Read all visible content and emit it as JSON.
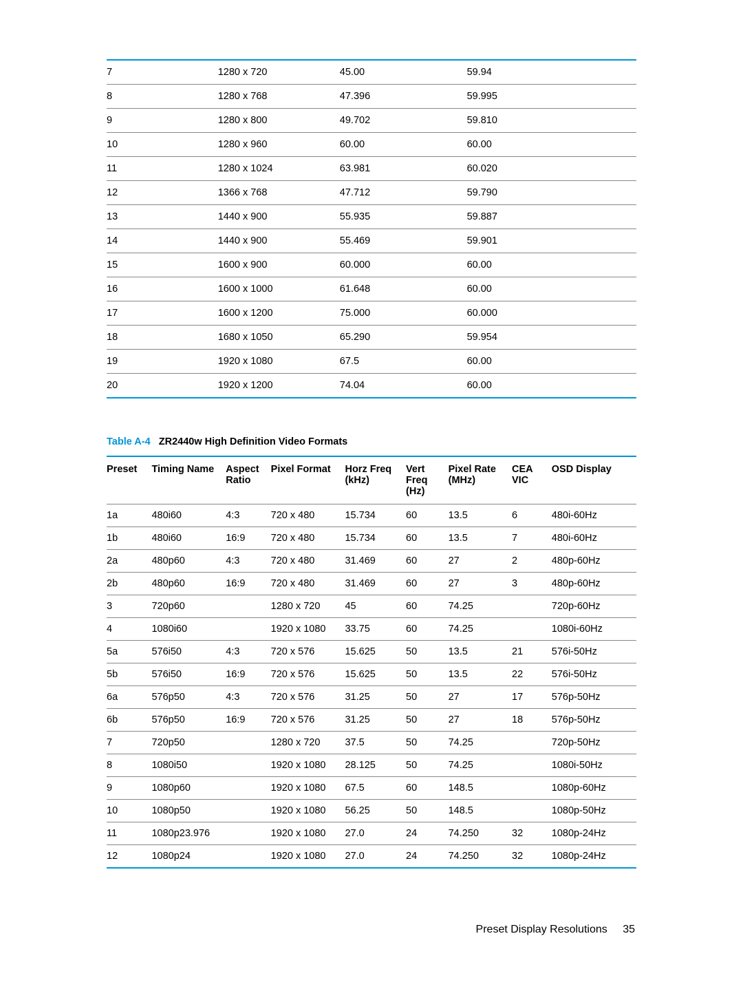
{
  "table1": {
    "rows": [
      [
        "7",
        "1280 x 720",
        "45.00",
        "59.94"
      ],
      [
        "8",
        "1280 x 768",
        "47.396",
        "59.995"
      ],
      [
        "9",
        "1280 x 800",
        "49.702",
        "59.810"
      ],
      [
        "10",
        "1280 x 960",
        "60.00",
        "60.00"
      ],
      [
        "11",
        "1280 x 1024",
        "63.981",
        "60.020"
      ],
      [
        "12",
        "1366 x 768",
        "47.712",
        "59.790"
      ],
      [
        "13",
        "1440 x 900",
        "55.935",
        "59.887"
      ],
      [
        "14",
        "1440 x 900",
        "55.469",
        "59.901"
      ],
      [
        "15",
        "1600 x 900",
        "60.000",
        "60.00"
      ],
      [
        "16",
        "1600 x 1000",
        "61.648",
        "60.00"
      ],
      [
        "17",
        "1600 x 1200",
        "75.000",
        "60.000"
      ],
      [
        "18",
        "1680 x 1050",
        "65.290",
        "59.954"
      ],
      [
        "19",
        "1920 x 1080",
        "67.5",
        "60.00"
      ],
      [
        "20",
        "1920 x 1200",
        "74.04",
        "60.00"
      ]
    ]
  },
  "caption": {
    "label": "Table A-4",
    "title": "ZR2440w High Definition Video Formats"
  },
  "table2": {
    "headers": [
      "Preset",
      "Timing Name",
      "Aspect Ratio",
      "Pixel Format",
      "Horz Freq (kHz)",
      "Vert Freq (Hz)",
      "Pixel Rate (MHz)",
      "CEA VIC",
      "OSD Display"
    ],
    "rows": [
      [
        "1a",
        "480i60",
        "4:3",
        "720 x 480",
        "15.734",
        "60",
        "13.5",
        "6",
        "480i-60Hz"
      ],
      [
        "1b",
        "480i60",
        "16:9",
        "720 x 480",
        "15.734",
        "60",
        "13.5",
        "7",
        "480i-60Hz"
      ],
      [
        "2a",
        "480p60",
        "4:3",
        "720 x 480",
        "31.469",
        "60",
        "27",
        "2",
        "480p-60Hz"
      ],
      [
        "2b",
        "480p60",
        "16:9",
        "720 x 480",
        "31.469",
        "60",
        "27",
        "3",
        "480p-60Hz"
      ],
      [
        "3",
        "720p60",
        "",
        "1280 x 720",
        "45",
        "60",
        "74.25",
        "",
        "720p-60Hz"
      ],
      [
        "4",
        "1080i60",
        "",
        "1920 x 1080",
        "33.75",
        "60",
        "74.25",
        "",
        "1080i-60Hz"
      ],
      [
        "5a",
        "576i50",
        "4:3",
        "720 x 576",
        "15.625",
        "50",
        "13.5",
        "21",
        "576i-50Hz"
      ],
      [
        "5b",
        "576i50",
        "16:9",
        "720 x 576",
        "15.625",
        "50",
        "13.5",
        "22",
        "576i-50Hz"
      ],
      [
        "6a",
        "576p50",
        "4:3",
        "720 x 576",
        "31.25",
        "50",
        "27",
        "17",
        "576p-50Hz"
      ],
      [
        "6b",
        "576p50",
        "16:9",
        "720 x 576",
        "31.25",
        "50",
        "27",
        "18",
        "576p-50Hz"
      ],
      [
        "7",
        "720p50",
        "",
        "1280 x 720",
        "37.5",
        "50",
        "74.25",
        "",
        "720p-50Hz"
      ],
      [
        "8",
        "1080i50",
        "",
        "1920 x 1080",
        "28.125",
        "50",
        "74.25",
        "",
        "1080i-50Hz"
      ],
      [
        "9",
        "1080p60",
        "",
        "1920 x 1080",
        "67.5",
        "60",
        "148.5",
        "",
        "1080p-60Hz"
      ],
      [
        "10",
        "1080p50",
        "",
        "1920 x 1080",
        "56.25",
        "50",
        "148.5",
        "",
        "1080p-50Hz"
      ],
      [
        "11",
        "1080p23.976",
        "",
        "1920 x 1080",
        "27.0",
        "24",
        "74.250",
        "32",
        "1080p-24Hz"
      ],
      [
        "12",
        "1080p24",
        "",
        "1920 x 1080",
        "27.0",
        "24",
        "74.250",
        "32",
        "1080p-24Hz"
      ]
    ]
  },
  "footer": {
    "section": "Preset Display Resolutions",
    "page": "35"
  },
  "colors": {
    "accent": "#0096d6",
    "rule": "#888888",
    "text": "#000000",
    "background": "#ffffff"
  }
}
